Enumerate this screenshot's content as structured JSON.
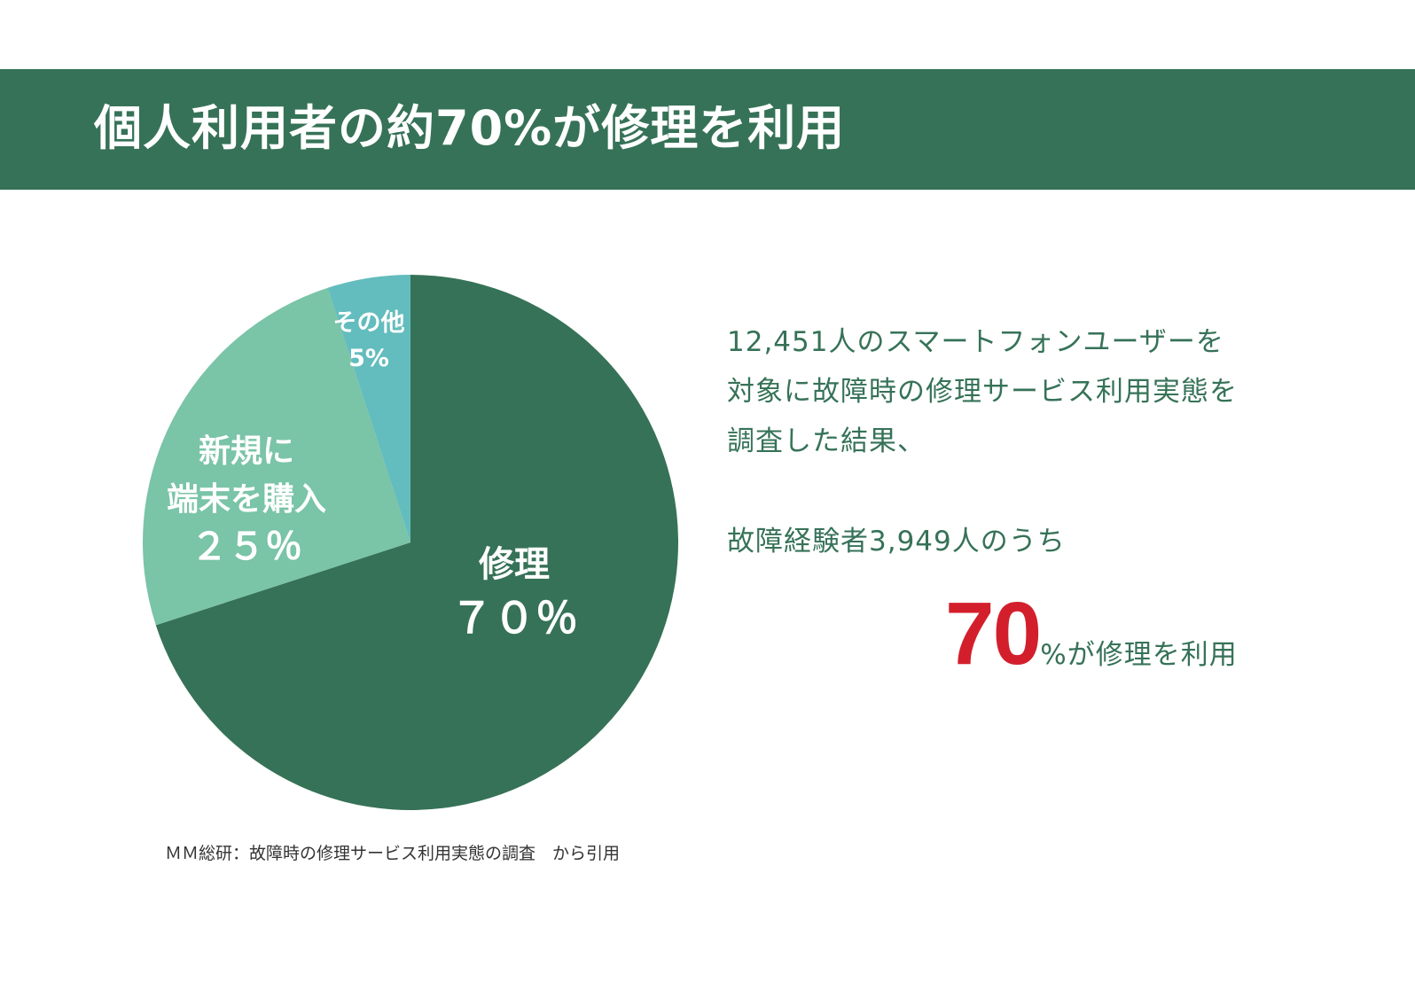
{
  "header": {
    "title": "個人利用者の約70%が修理を利用"
  },
  "chart_data": {
    "type": "pie",
    "slices": [
      {
        "label_lines": [
          "修理"
        ],
        "value_label": "７０％",
        "value": 70,
        "color": "#367257"
      },
      {
        "label_lines": [
          "新規に",
          "端末を購入"
        ],
        "value_label": "２５％",
        "value": 25,
        "color": "#7ac4a7"
      },
      {
        "label_lines": [
          "その他"
        ],
        "value_label": "5%",
        "value": 5,
        "color": "#63bcbd"
      }
    ],
    "start": "12 o'clock",
    "direction": "clockwise"
  },
  "description": {
    "lines": [
      "12,451人のスマートフォンユーザーを",
      "対象に故障時の修理サービス利用実態を",
      "調査した結果、"
    ],
    "sub_line": "故障経験者3,949人のうち",
    "highlight_number": "70",
    "highlight_suffix": "%が修理を利用"
  },
  "source": "ＭＭ総研：故障時の修理サービス利用実態の調査　から引用",
  "colors": {
    "brand_green": "#367257",
    "accent_red": "#d31f2c"
  }
}
